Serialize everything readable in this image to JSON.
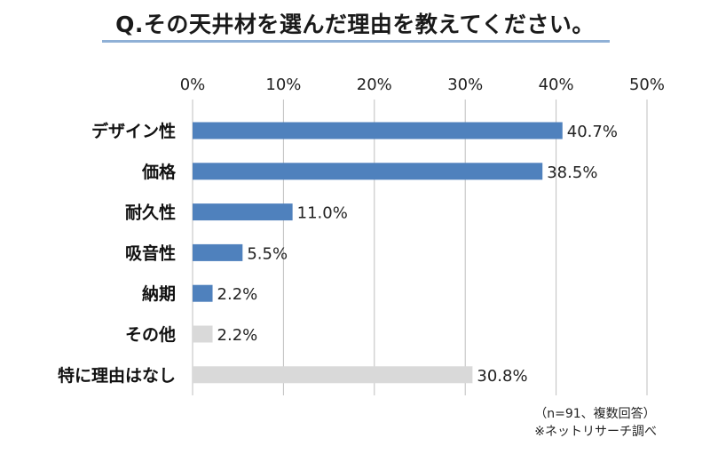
{
  "chart_data": {
    "type": "bar",
    "orientation": "horizontal",
    "title": "Q.その天井材を選んだ理由を教えてください。",
    "categories": [
      "デザイン性",
      "価格",
      "耐久性",
      "吸音性",
      "納期",
      "その他",
      "特に理由はなし"
    ],
    "values": [
      40.7,
      38.5,
      11.0,
      5.5,
      2.2,
      2.2,
      30.8
    ],
    "value_labels": [
      "40.7%",
      "38.5%",
      "11.0%",
      "5.5%",
      "2.2%",
      "2.2%",
      "30.8%"
    ],
    "xlim": [
      0,
      50
    ],
    "xticks": [
      "0%",
      "10%",
      "20%",
      "30%",
      "40%",
      "50%"
    ],
    "xlabel": "",
    "ylabel": "",
    "grid": "vertical",
    "axis_position": "top",
    "colors": {
      "main": "#4f81bd",
      "muted": "#d9d9d9"
    },
    "bar_colors": [
      "main",
      "main",
      "main",
      "main",
      "main",
      "muted",
      "muted"
    ]
  },
  "notes": {
    "sample": "（n=91、複数回答）",
    "source": "※ネットリサーチ調べ"
  }
}
